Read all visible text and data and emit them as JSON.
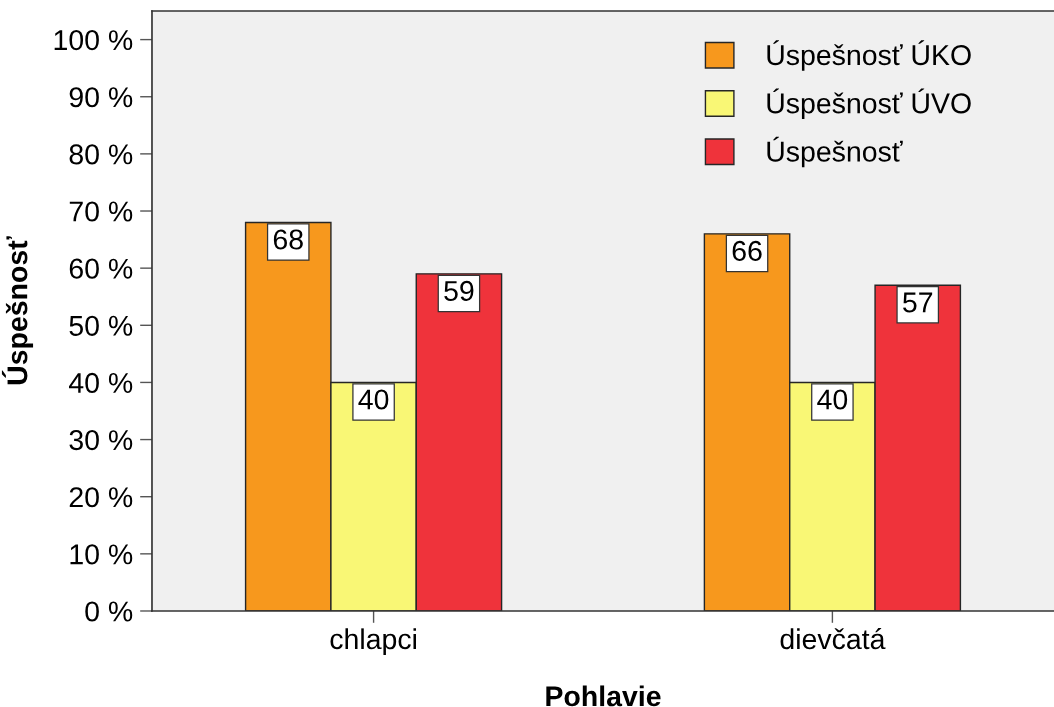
{
  "chart_data": {
    "type": "bar",
    "xlabel": "Pohlavie",
    "ylabel": "Úspešnosť",
    "categories": [
      "chlapci",
      "dievčatá"
    ],
    "series": [
      {
        "name": "Úspešnosť ÚKO",
        "color": "#f7981d",
        "values": [
          68,
          66
        ]
      },
      {
        "name": "Úspešnosť ÚVO",
        "color": "#f9f775",
        "values": [
          40,
          40
        ]
      },
      {
        "name": "Úspešnosť",
        "color": "#ef333b",
        "values": [
          59,
          57
        ]
      }
    ],
    "ylim": [
      0,
      105
    ],
    "yticks": [
      {
        "value": 0,
        "label": "0 %"
      },
      {
        "value": 10,
        "label": "10 %"
      },
      {
        "value": 20,
        "label": "20 %"
      },
      {
        "value": 30,
        "label": "30 %"
      },
      {
        "value": 40,
        "label": "40 %"
      },
      {
        "value": 50,
        "label": "50 %"
      },
      {
        "value": 60,
        "label": "60 %"
      },
      {
        "value": 70,
        "label": "70 %"
      },
      {
        "value": 80,
        "label": "80 %"
      },
      {
        "value": 90,
        "label": "90 %"
      },
      {
        "value": 100,
        "label": "100 %"
      }
    ],
    "data_labels": true,
    "legend": "top right"
  }
}
